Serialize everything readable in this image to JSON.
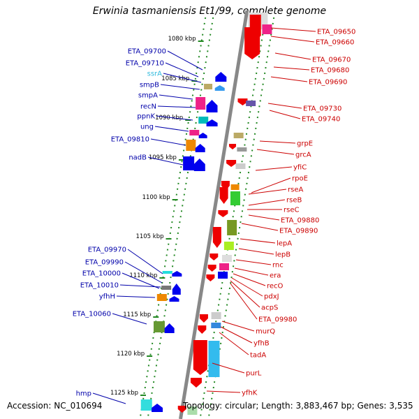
{
  "title": "Erwinia tasmaniensis Et1/99, complete genome",
  "footer": {
    "accession": "Accession: NC_010694",
    "topology": "Topology: circular; Length: 3,883,467 bp; Genes: 3,535"
  },
  "colors": {
    "left_label": "#0000aa",
    "right_label": "#cc0000",
    "rna_label": "#33bbdd",
    "forward_gene": "#0000ee",
    "reverse_gene": "#ee0000",
    "backbone": "#888888",
    "tick": "#228822"
  },
  "ticks": [
    "1080 kbp",
    "1085 kbp",
    "1090 kbp",
    "1095 kbp",
    "1100 kbp",
    "1105 kbp",
    "1110 kbp",
    "1115 kbp",
    "1120 kbp",
    "1125 kbp"
  ],
  "left_labels": [
    "ETA_09700",
    "ETA_09710",
    "ssrA",
    "smpB",
    "smpA",
    "recN",
    "ppnK",
    "ung",
    "ETA_09810",
    "nadB",
    "ETA_09970",
    "ETA_09990",
    "ETA_10000",
    "ETA_10010",
    "yfhH",
    "ETA_10060",
    "hmp"
  ],
  "right_labels": [
    "ETA_09650",
    "ETA_09660",
    "ETA_09670",
    "ETA_09680",
    "ETA_09690",
    "ETA_09730",
    "ETA_09740",
    "grpE",
    "grcA",
    "yfiC",
    "rpoE",
    "rseA",
    "rseB",
    "rseC",
    "ETA_09880",
    "ETA_09890",
    "lepA",
    "lepB",
    "rnc",
    "era",
    "recO",
    "pdxJ",
    "acpS",
    "ETA_09980",
    "murQ",
    "yfhB",
    "tadA",
    "purL",
    "yfhK"
  ]
}
